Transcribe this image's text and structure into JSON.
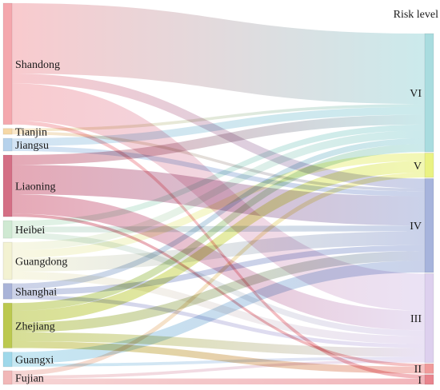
{
  "right_axis_title": "Risk level",
  "colors": {
    "Shandong": "#f4a7ad",
    "Tianjin": "#f6d8a6",
    "Jiangsu": "#b6d2ec",
    "Liaoning": "#d46f85",
    "Heibei": "#cfe9d2",
    "Guangdong": "#f3f2d2",
    "Shanghai": "#a9b3d8",
    "Zhejiang": "#bcc94f",
    "Guangxi": "#9fd8ea",
    "Fujian": "#f1b8b8",
    "VI": "#a9dcdf",
    "V": "#eaf283",
    "IV": "#a7b4dc",
    "III": "#ddd0ee",
    "II": "#f09a9a",
    "I": "#e8848d"
  },
  "sources": [
    {
      "id": "Shandong",
      "label": "Shandong"
    },
    {
      "id": "Tianjin",
      "label": "Tianjin"
    },
    {
      "id": "Jiangsu",
      "label": "Jiangsu"
    },
    {
      "id": "Liaoning",
      "label": "Liaoning"
    },
    {
      "id": "Heibei",
      "label": "Heibei"
    },
    {
      "id": "Guangdong",
      "label": "Guangdong"
    },
    {
      "id": "Shanghai",
      "label": "Shanghai"
    },
    {
      "id": "Zhejiang",
      "label": "Zhejiang"
    },
    {
      "id": "Guangxi",
      "label": "Guangxi"
    },
    {
      "id": "Fujian",
      "label": "Fujian"
    }
  ],
  "targets": [
    {
      "id": "VI",
      "label": "VI"
    },
    {
      "id": "V",
      "label": "V"
    },
    {
      "id": "IV",
      "label": "IV"
    },
    {
      "id": "III",
      "label": "III"
    },
    {
      "id": "II",
      "label": "II"
    },
    {
      "id": "I",
      "label": "I"
    }
  ],
  "links": [
    {
      "source": "Shandong",
      "target": "VI",
      "value": 72
    },
    {
      "source": "Shandong",
      "target": "IV",
      "value": 10
    },
    {
      "source": "Shandong",
      "target": "III",
      "value": 38
    },
    {
      "source": "Shandong",
      "target": "I",
      "value": 4
    },
    {
      "source": "Tianjin",
      "target": "VI",
      "value": 3
    },
    {
      "source": "Tianjin",
      "target": "IV",
      "value": 3
    },
    {
      "source": "Jiangsu",
      "target": "VI",
      "value": 8
    },
    {
      "source": "Jiangsu",
      "target": "IV",
      "value": 5
    },
    {
      "source": "Liaoning",
      "target": "VI",
      "value": 10
    },
    {
      "source": "Liaoning",
      "target": "IV",
      "value": 30
    },
    {
      "source": "Liaoning",
      "target": "III",
      "value": 20
    },
    {
      "source": "Liaoning",
      "target": "II",
      "value": 3
    },
    {
      "source": "Heibei",
      "target": "VI",
      "value": 6
    },
    {
      "source": "Heibei",
      "target": "IV",
      "value": 6
    },
    {
      "source": "Heibei",
      "target": "III",
      "value": 6
    },
    {
      "source": "Guangdong",
      "target": "VI",
      "value": 8
    },
    {
      "source": "Guangdong",
      "target": "V",
      "value": 8
    },
    {
      "source": "Guangdong",
      "target": "IV",
      "value": 14
    },
    {
      "source": "Guangdong",
      "target": "III",
      "value": 8
    },
    {
      "source": "Shanghai",
      "target": "VI",
      "value": 6
    },
    {
      "source": "Shanghai",
      "target": "IV",
      "value": 6
    },
    {
      "source": "Shanghai",
      "target": "III",
      "value": 4
    },
    {
      "source": "Zhejiang",
      "target": "VI",
      "value": 8
    },
    {
      "source": "Zhejiang",
      "target": "V",
      "value": 12
    },
    {
      "source": "Zhejiang",
      "target": "IV",
      "value": 10
    },
    {
      "source": "Zhejiang",
      "target": "III",
      "value": 9
    },
    {
      "source": "Zhejiang",
      "target": "II",
      "value": 7
    },
    {
      "source": "Guangxi",
      "target": "IV",
      "value": 12
    },
    {
      "source": "Guangxi",
      "target": "III",
      "value": 3
    },
    {
      "source": "Fujian",
      "target": "V",
      "value": 5
    },
    {
      "source": "Fujian",
      "target": "III",
      "value": 3
    },
    {
      "source": "Fujian",
      "target": "I",
      "value": 6
    }
  ]
}
